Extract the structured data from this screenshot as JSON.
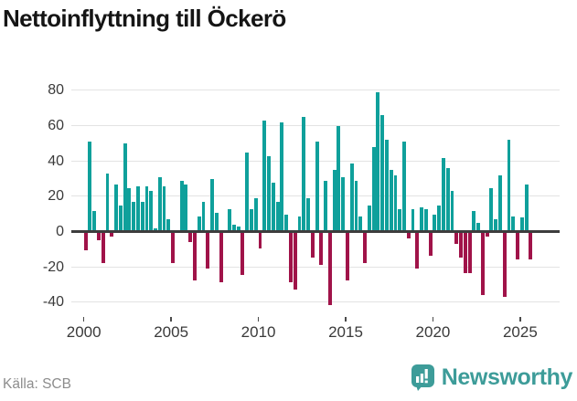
{
  "title": "Nettoinflyttning till Öckerö",
  "source_label": "Källa: SCB",
  "logo": {
    "text": "Newsworthy",
    "icon": "bar-chart-speech-bubble"
  },
  "colors": {
    "positive": "#0fa09b",
    "negative": "#a01349",
    "grid": "#e3e3e3",
    "zero_line": "#3d3d3d",
    "axis_text": "#3a3a3a",
    "logo_teal": "#3d9c99",
    "source_text": "#8d8d8d"
  },
  "chart_data": {
    "type": "bar",
    "title": "Nettoinflyttning till Öckerö",
    "frequency": "quarterly",
    "start_period": "2000-Q1",
    "end_period": "2025-Q3",
    "x_tick_labels": [
      "2000",
      "2005",
      "2010",
      "2015",
      "2020",
      "2025"
    ],
    "y_ticks": [
      80,
      60,
      40,
      20,
      0,
      -20,
      -40
    ],
    "ylim": [
      -48,
      86
    ],
    "grid": true,
    "legend": false,
    "values": [
      -10,
      50,
      11,
      -4,
      -17,
      32,
      -2,
      26,
      14,
      49,
      24,
      16,
      25,
      16,
      25,
      22,
      1,
      30,
      25,
      6,
      -17,
      0,
      28,
      26,
      -5,
      -27,
      8,
      16,
      -20,
      29,
      10,
      -28,
      0,
      12,
      3,
      2,
      -24,
      44,
      12,
      18,
      -9,
      62,
      42,
      27,
      16,
      61,
      9,
      -28,
      -32,
      8,
      64,
      18,
      -14,
      50,
      -18,
      28,
      -41,
      34,
      59,
      30,
      -27,
      38,
      28,
      8,
      -17,
      14,
      47,
      78,
      65,
      51,
      34,
      31,
      12,
      50,
      -3,
      12,
      -20,
      13,
      12,
      -13,
      9,
      14,
      41,
      35,
      22,
      -6,
      -14,
      -23,
      -23,
      11,
      4,
      -35,
      -2,
      24,
      6,
      31,
      -36,
      51,
      8,
      -15,
      7,
      26,
      -15
    ]
  }
}
